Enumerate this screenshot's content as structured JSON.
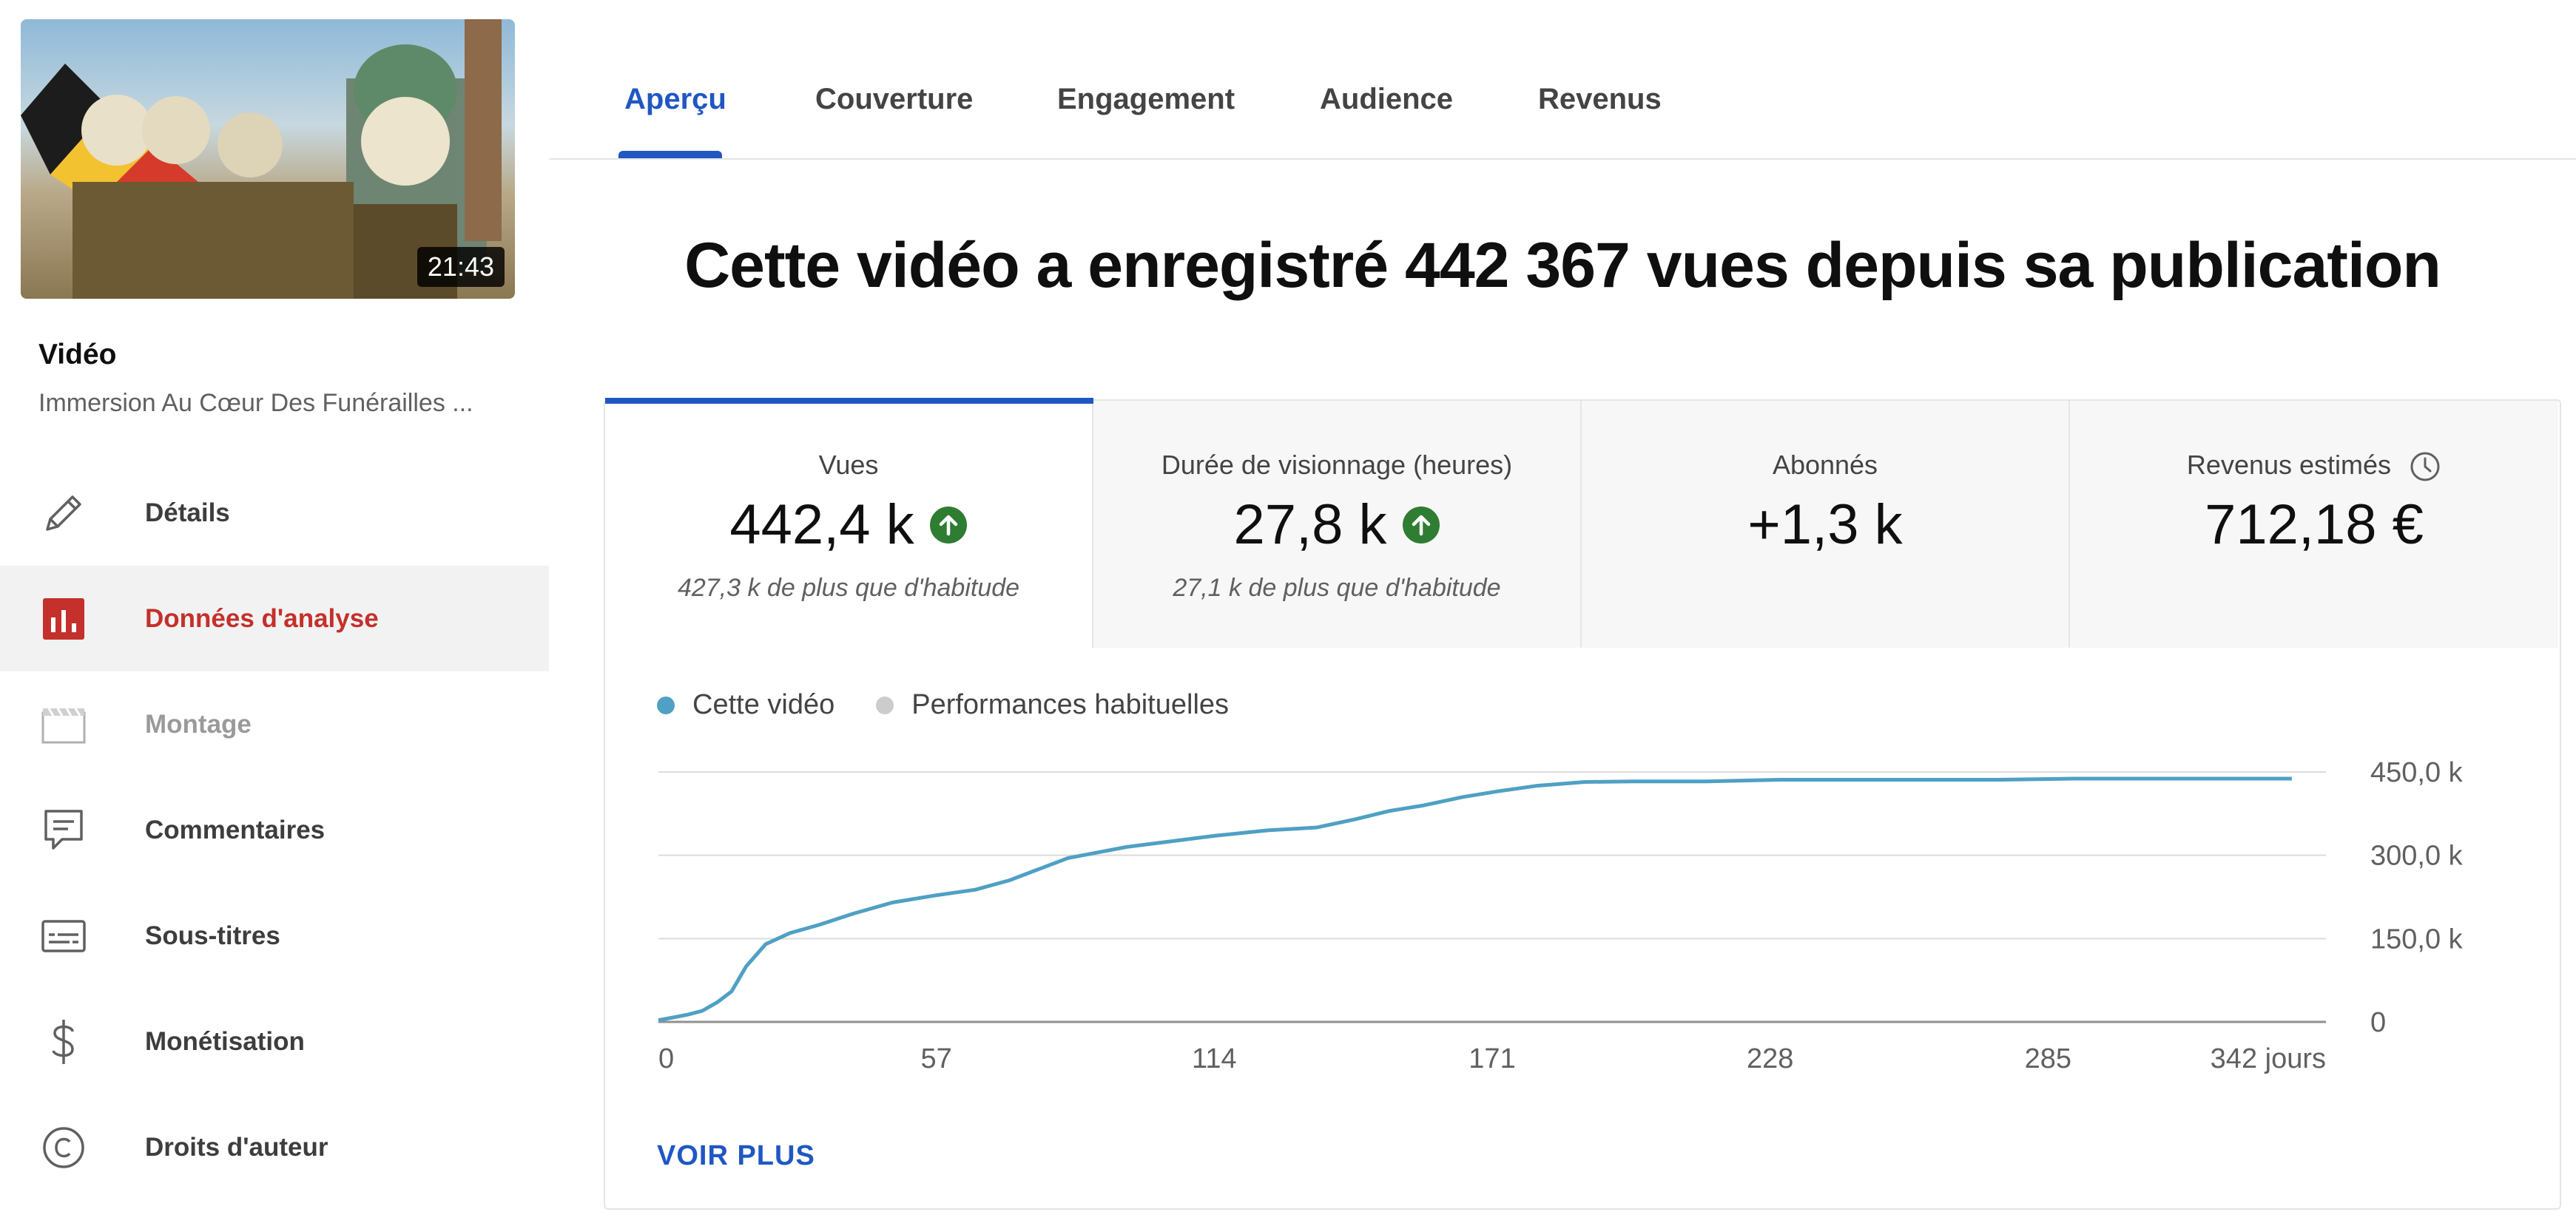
{
  "sidebar": {
    "thumbnail": {
      "duration": "21:43"
    },
    "video_label": "Vidéo",
    "video_title": "Immersion Au Cœur Des Funérailles ...",
    "items": [
      {
        "label": "Détails",
        "icon": "pencil-icon"
      },
      {
        "label": "Données d'analyse",
        "icon": "analytics-icon"
      },
      {
        "label": "Montage",
        "icon": "clapperboard-icon"
      },
      {
        "label": "Commentaires",
        "icon": "comment-icon"
      },
      {
        "label": "Sous-titres",
        "icon": "subtitles-icon"
      },
      {
        "label": "Monétisation",
        "icon": "dollar-icon"
      },
      {
        "label": "Droits d'auteur",
        "icon": "copyright-icon"
      }
    ]
  },
  "tabs": [
    "Aperçu",
    "Couverture",
    "Engagement",
    "Audience",
    "Revenus"
  ],
  "headline": "Cette vidéo a enregistré 442 367 vues depuis sa publication",
  "metrics": [
    {
      "label": "Vues",
      "value": "442,4 k",
      "trend": "up",
      "sub": "427,3 k de plus que d'habitude"
    },
    {
      "label": "Durée de visionnage (heures)",
      "value": "27,8 k",
      "trend": "up",
      "sub": "27,1 k de plus que d'habitude"
    },
    {
      "label": "Abonnés",
      "value": "+1,3 k",
      "trend": "",
      "sub": ""
    },
    {
      "label": "Revenus estimés",
      "value": "712,18 €",
      "trend": "",
      "sub": "",
      "icon": "clock-icon"
    }
  ],
  "legend": [
    {
      "label": "Cette vidéo",
      "color": "#4fa0c4"
    },
    {
      "label": "Performances habituelles",
      "color": "#cccccc"
    }
  ],
  "voir_plus": "VOIR PLUS",
  "colors": {
    "accent": "#1f57c3",
    "active_nav": "#c4302b",
    "line": "#4fa0c4",
    "up": "#2e7d32"
  },
  "chart_data": {
    "type": "line",
    "x_ticks": [
      "0",
      "57",
      "114",
      "171",
      "228",
      "285",
      "342 jours"
    ],
    "y_ticks": [
      "450,0 k",
      "300,0 k",
      "150,0 k",
      "0"
    ],
    "xlim": [
      0,
      342
    ],
    "ylim": [
      0,
      450000
    ],
    "series": [
      {
        "name": "Cette vidéo",
        "x": [
          0,
          3,
          6,
          9,
          12,
          15,
          18,
          22,
          27,
          33,
          40,
          48,
          57,
          65,
          72,
          78,
          84,
          90,
          96,
          105,
          114,
          125,
          135,
          143,
          150,
          157,
          165,
          172,
          180,
          190,
          200,
          215,
          230,
          245,
          260,
          275,
          290,
          305,
          320,
          335
        ],
        "y": [
          3000,
          8000,
          13000,
          20000,
          35000,
          55000,
          100000,
          140000,
          160000,
          175000,
          195000,
          215000,
          228000,
          238000,
          255000,
          275000,
          295000,
          305000,
          315000,
          325000,
          335000,
          345000,
          350000,
          365000,
          380000,
          390000,
          405000,
          415000,
          425000,
          432000,
          433000,
          433000,
          436000,
          436000,
          436000,
          436000,
          438000,
          438000,
          438000,
          438000
        ]
      }
    ]
  }
}
